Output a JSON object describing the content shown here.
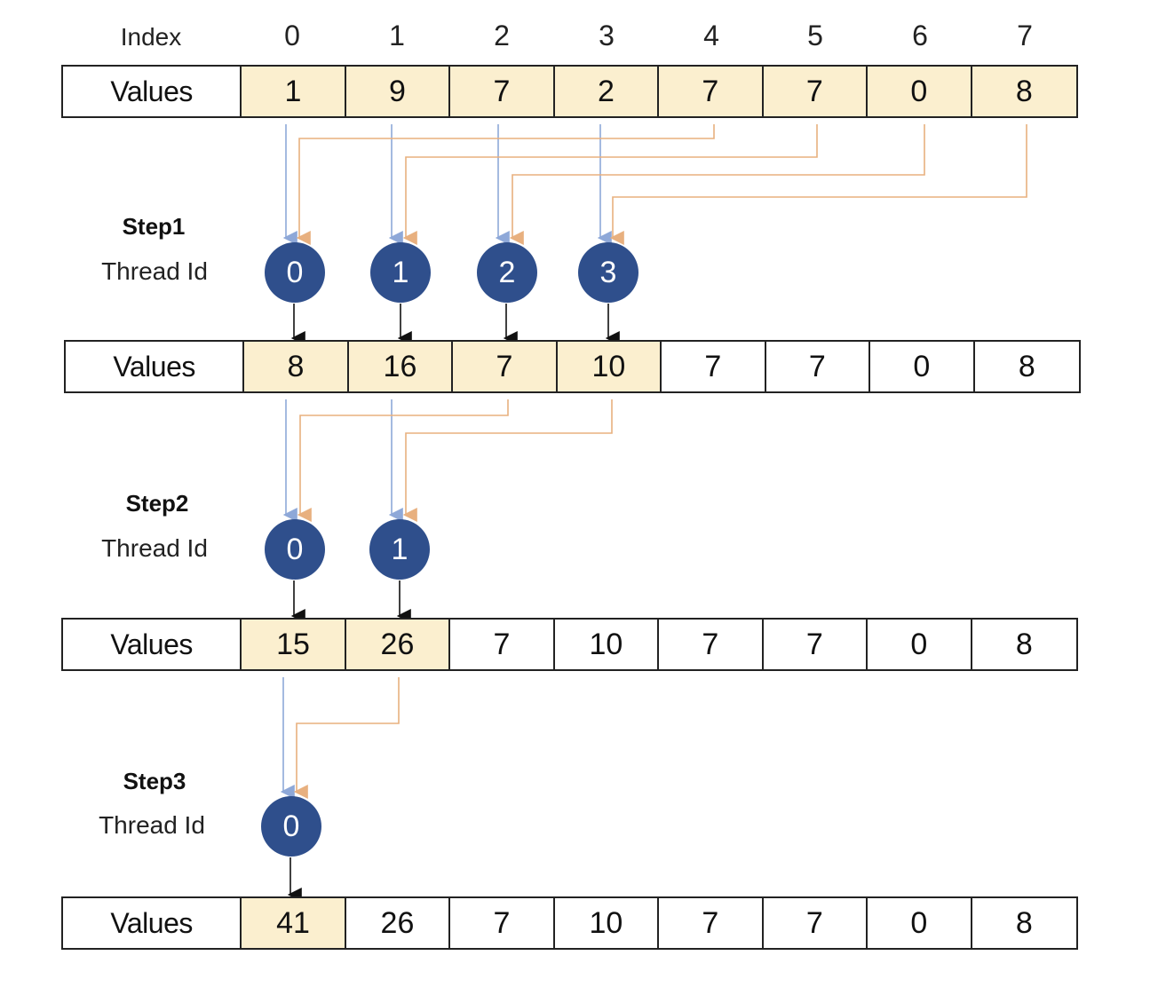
{
  "index_header": "Index",
  "indices": [
    "0",
    "1",
    "2",
    "3",
    "4",
    "5",
    "6",
    "7"
  ],
  "row_label": "Values",
  "thread_label": "Thread Id",
  "colors": {
    "highlight": "#fbefcf",
    "thread_fill": "#2f4f8c",
    "blue_arrow": "#8ea8d8",
    "orange_arrow": "#e8b07f"
  },
  "rows": [
    {
      "values": [
        "1",
        "9",
        "7",
        "2",
        "7",
        "7",
        "0",
        "8"
      ],
      "highlighted": [
        0,
        1,
        2,
        3,
        4,
        5,
        6,
        7
      ]
    },
    {
      "values": [
        "8",
        "16",
        "7",
        "10",
        "7",
        "7",
        "0",
        "8"
      ],
      "highlighted": [
        0,
        1,
        2,
        3
      ]
    },
    {
      "values": [
        "15",
        "26",
        "7",
        "10",
        "7",
        "7",
        "0",
        "8"
      ],
      "highlighted": [
        0,
        1
      ]
    },
    {
      "values": [
        "41",
        "26",
        "7",
        "10",
        "7",
        "7",
        "0",
        "8"
      ],
      "highlighted": [
        0
      ]
    }
  ],
  "steps": [
    {
      "title": "Step1",
      "threads": [
        "0",
        "1",
        "2",
        "3"
      ]
    },
    {
      "title": "Step2",
      "threads": [
        "0",
        "1"
      ]
    },
    {
      "title": "Step3",
      "threads": [
        "0"
      ]
    }
  ]
}
